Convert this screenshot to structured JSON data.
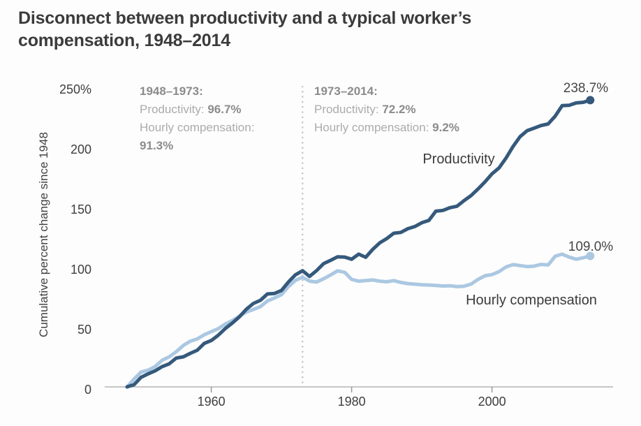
{
  "header": {
    "title_lines": [
      "Disconnect between productivity and a typical worker’s",
      "compensation, 1948–2014"
    ]
  },
  "annotations": {
    "period1": {
      "lines": [
        [
          {
            "text": "1948–1973:",
            "bold": true
          }
        ],
        [
          {
            "text": "Productivity: ",
            "bold": false
          },
          {
            "text": "96.7%",
            "bold": true
          }
        ],
        [
          {
            "text": "Hourly compensation:",
            "bold": false
          }
        ],
        [
          {
            "text": "91.3%",
            "bold": true
          }
        ]
      ]
    },
    "period2": {
      "lines": [
        [
          {
            "text": "1973–2014:",
            "bold": true
          }
        ],
        [
          {
            "text": "Productivity: ",
            "bold": false
          },
          {
            "text": "72.2%",
            "bold": true
          }
        ],
        [
          {
            "text": "Hourly compensation: ",
            "bold": false
          },
          {
            "text": "9.2%",
            "bold": true
          }
        ]
      ]
    }
  },
  "chart_data": {
    "type": "line",
    "title": "Disconnect between productivity and a typical worker’s compensation, 1948–2014",
    "xlabel": "",
    "ylabel": "Cumulative percent change since 1948",
    "grid": false,
    "legend_position": "inline-labels",
    "x": [
      1948,
      1949,
      1950,
      1951,
      1952,
      1953,
      1954,
      1955,
      1956,
      1957,
      1958,
      1959,
      1960,
      1961,
      1962,
      1963,
      1964,
      1965,
      1966,
      1967,
      1968,
      1969,
      1970,
      1971,
      1972,
      1973,
      1974,
      1975,
      1976,
      1977,
      1978,
      1979,
      1980,
      1981,
      1982,
      1983,
      1984,
      1985,
      1986,
      1987,
      1988,
      1989,
      1990,
      1991,
      1992,
      1993,
      1994,
      1995,
      1996,
      1997,
      1998,
      1999,
      2000,
      2001,
      2002,
      2003,
      2004,
      2005,
      2006,
      2007,
      2008,
      2009,
      2010,
      2011,
      2012,
      2013,
      2014
    ],
    "series": [
      {
        "name": "Productivity",
        "color": "#35597b",
        "end_value": 238.7,
        "values": [
          0,
          1.9,
          8.0,
          10.9,
          13.4,
          16.9,
          19.2,
          24.0,
          25.0,
          27.9,
          30.5,
          36.2,
          38.6,
          43.0,
          48.6,
          53.2,
          58.3,
          64.7,
          69.5,
          72.1,
          77.4,
          77.8,
          80.3,
          87.3,
          93.4,
          96.7,
          92.0,
          96.8,
          102.6,
          105.4,
          108.3,
          108.1,
          106.3,
          110.5,
          107.9,
          114.5,
          119.9,
          123.5,
          127.9,
          128.6,
          131.7,
          133.5,
          136.7,
          138.6,
          146.3,
          146.9,
          149.2,
          150.4,
          155.0,
          159.2,
          164.7,
          170.7,
          177.4,
          182.3,
          190.5,
          200.2,
          208.3,
          213.3,
          215.4,
          217.6,
          218.9,
          225.4,
          234.2,
          234.5,
          236.4,
          236.9,
          238.7
        ]
      },
      {
        "name": "Hourly compensation",
        "color": "#abc8e2",
        "end_value": 109.0,
        "values": [
          0,
          6.6,
          12.4,
          13.9,
          16.9,
          22.2,
          25.0,
          29.3,
          34.5,
          38.0,
          39.9,
          43.5,
          46.0,
          48.5,
          52.3,
          55.3,
          58.8,
          62.4,
          64.5,
          66.8,
          71.5,
          74.0,
          76.8,
          83.5,
          88.7,
          91.3,
          88.0,
          87.3,
          90.0,
          93.2,
          96.6,
          95.4,
          89.5,
          88.0,
          88.5,
          89.0,
          88.0,
          87.5,
          88.5,
          87.0,
          86.0,
          85.5,
          85.0,
          84.8,
          84.5,
          84.0,
          84.2,
          83.5,
          83.8,
          85.5,
          89.5,
          92.5,
          93.5,
          96.0,
          99.8,
          101.8,
          101.0,
          100.2,
          100.5,
          102.0,
          101.5,
          108.8,
          110.5,
          108.0,
          106.3,
          107.5,
          109.0
        ]
      }
    ],
    "x_axis": {
      "min": 1948,
      "max": 2017,
      "ticks": [
        1960,
        1980,
        2000
      ]
    },
    "y_axis": {
      "min": 0,
      "max": 250,
      "unit": "%",
      "ticks": [
        {
          "value": 250,
          "label": "250%"
        },
        {
          "value": 200,
          "label": "200"
        },
        {
          "value": 150,
          "label": "150"
        },
        {
          "value": 100,
          "label": "100"
        },
        {
          "value": 50,
          "label": "50"
        },
        {
          "value": 0,
          "label": "0"
        }
      ]
    },
    "divider_year": 1973,
    "end_labels": [
      {
        "text": "238.7%"
      },
      {
        "text": "109.0%"
      }
    ],
    "series_labels": [
      {
        "text": "Productivity"
      },
      {
        "text": "Hourly compensation"
      }
    ]
  },
  "colors": {
    "background": "#fdfdfd",
    "title_text": "#3b3b3b",
    "axis_line": "#b3b3b3",
    "tick_mark": "#999999",
    "tick_label": "#3e3e3e",
    "annotation_text": "#ababab",
    "annotation_bold": "#8b8b8b",
    "divider_dots": "#c9c9c9",
    "productivity_line": "#35597b",
    "compensation_line": "#abc8e2"
  }
}
